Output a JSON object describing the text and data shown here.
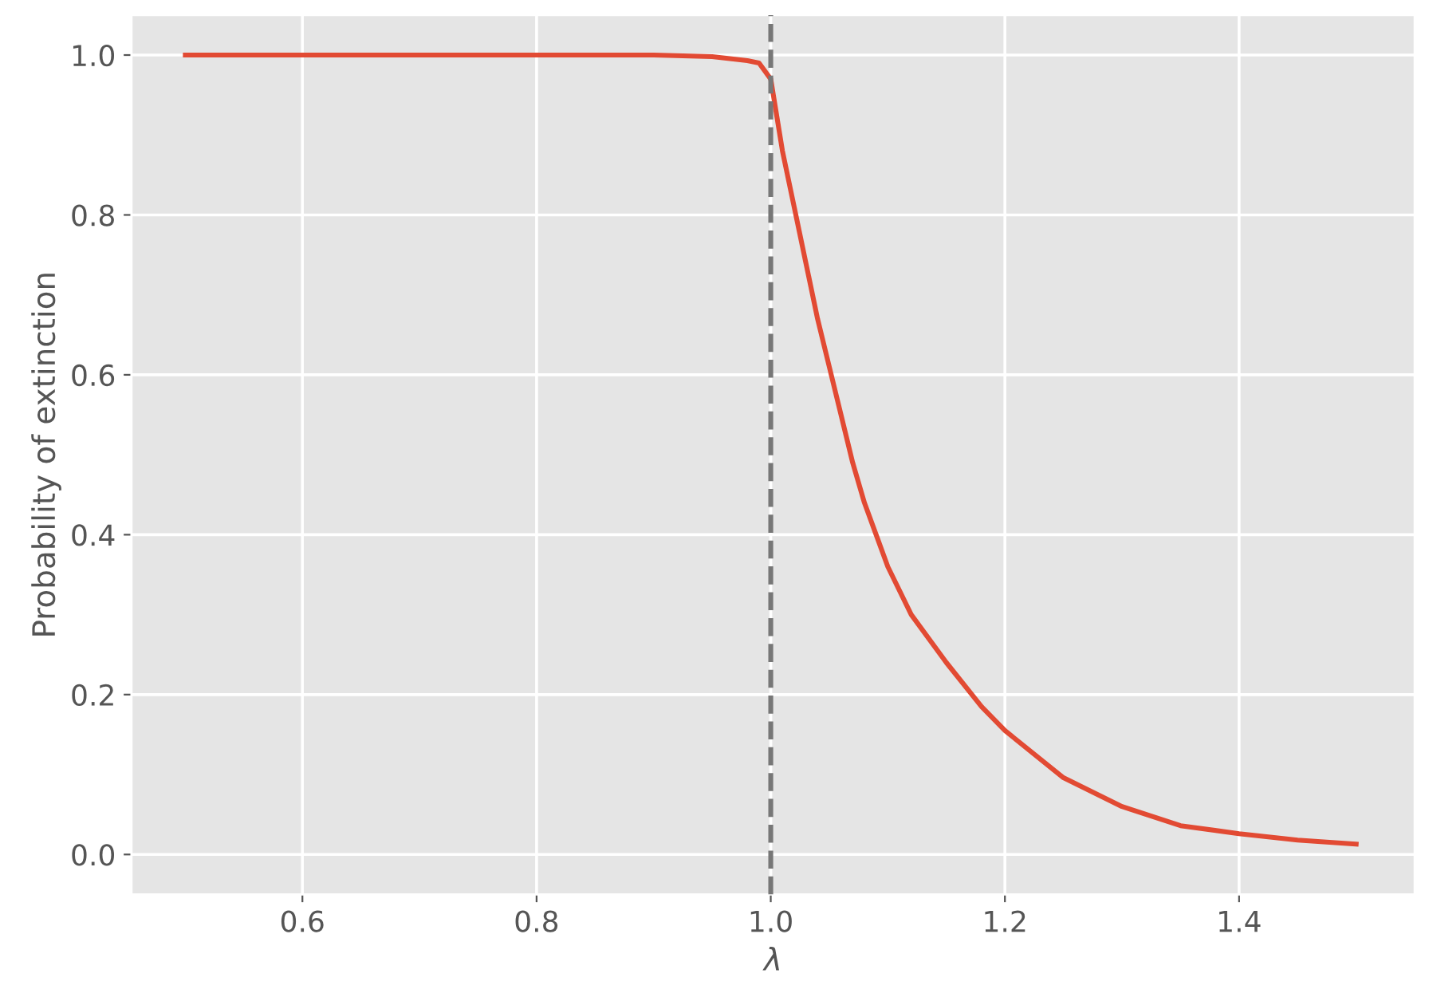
{
  "chart_data": {
    "type": "line",
    "xlabel": "λ",
    "ylabel": "Probability of extinction",
    "x": [
      0.5,
      0.6,
      0.7,
      0.8,
      0.9,
      0.95,
      0.98,
      0.99,
      1.0,
      1.01,
      1.02,
      1.03,
      1.04,
      1.05,
      1.06,
      1.07,
      1.08,
      1.09,
      1.1,
      1.12,
      1.15,
      1.18,
      1.2,
      1.25,
      1.3,
      1.35,
      1.4,
      1.45,
      1.5
    ],
    "series": [
      {
        "color": "#e24a33",
        "values": [
          1.0,
          1.0,
          1.0,
          1.0,
          1.0,
          0.998,
          0.993,
          0.99,
          0.97,
          0.88,
          0.81,
          0.74,
          0.67,
          0.61,
          0.55,
          0.49,
          0.44,
          0.4,
          0.36,
          0.3,
          0.24,
          0.185,
          0.155,
          0.096,
          0.06,
          0.036,
          0.026,
          0.018,
          0.013
        ]
      }
    ],
    "xlim": [
      0.454,
      1.55
    ],
    "ylim": [
      -0.05,
      1.05
    ],
    "xticks": [
      0.6,
      0.8,
      {
        "value": 1,
        "label": "1.0"
      },
      1.2,
      1.4
    ],
    "yticks": [
      {
        "value": 0,
        "label": "0.0"
      },
      0.2,
      0.4,
      0.6,
      0.8,
      {
        "value": 1,
        "label": "1.0"
      }
    ],
    "ref_lines": [
      {
        "axis": "x",
        "value": 1.0,
        "color": "#777777",
        "line_style": "dashed"
      }
    ],
    "grid": true,
    "marker": "none",
    "line_style": "solid"
  }
}
